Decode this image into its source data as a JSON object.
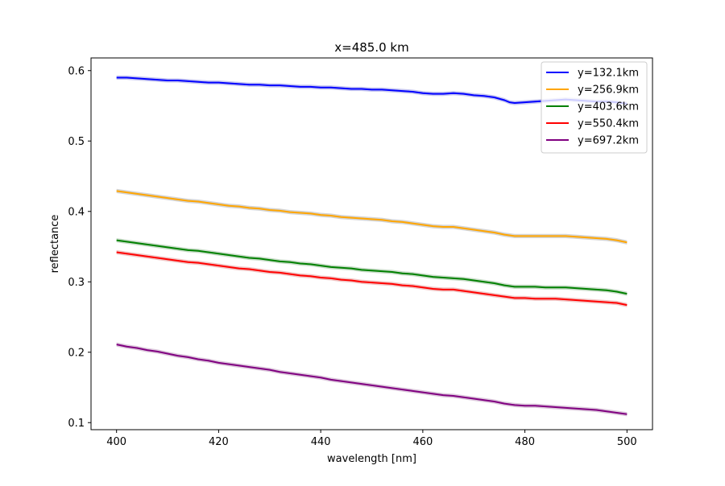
{
  "chart_data": {
    "type": "line",
    "title": "x=485.0 km",
    "xlabel": "wavelength [nm]",
    "ylabel": "reflectance",
    "xlim": [
      395,
      505
    ],
    "ylim": [
      0.09,
      0.618
    ],
    "xticks": [
      400,
      420,
      440,
      460,
      480,
      500
    ],
    "yticks": [
      0.1,
      0.2,
      0.3,
      0.4,
      0.5,
      0.6
    ],
    "grid": false,
    "legend": {
      "placement": "top-right"
    },
    "band": "±0.003",
    "x": [
      400,
      402,
      404,
      406,
      408,
      410,
      412,
      414,
      416,
      418,
      420,
      422,
      424,
      426,
      428,
      430,
      432,
      434,
      436,
      438,
      440,
      442,
      444,
      446,
      448,
      450,
      452,
      454,
      456,
      458,
      460,
      462,
      464,
      466,
      468,
      470,
      472,
      474,
      476,
      477,
      478,
      480,
      482,
      484,
      486,
      488,
      490,
      492,
      494,
      496,
      498,
      500
    ],
    "series": [
      {
        "name": "y=132.1km",
        "color": "#0000ff",
        "band_color": "#c6c6f0",
        "values": [
          0.59,
          0.59,
          0.589,
          0.588,
          0.587,
          0.586,
          0.586,
          0.585,
          0.584,
          0.583,
          0.583,
          0.582,
          0.581,
          0.58,
          0.58,
          0.579,
          0.579,
          0.578,
          0.577,
          0.577,
          0.576,
          0.576,
          0.575,
          0.574,
          0.574,
          0.573,
          0.573,
          0.572,
          0.571,
          0.57,
          0.568,
          0.567,
          0.567,
          0.568,
          0.567,
          0.565,
          0.564,
          0.562,
          0.558,
          0.555,
          0.554,
          0.555,
          0.556,
          0.557,
          0.558,
          0.559,
          0.558,
          0.557,
          0.556,
          0.556,
          0.555,
          0.553
        ]
      },
      {
        "name": "y=256.9km",
        "color": "#ffa500",
        "band_color": "#d4d4d4",
        "values": [
          0.429,
          0.427,
          0.425,
          0.423,
          0.421,
          0.419,
          0.417,
          0.415,
          0.414,
          0.412,
          0.41,
          0.408,
          0.407,
          0.405,
          0.404,
          0.402,
          0.401,
          0.399,
          0.398,
          0.397,
          0.395,
          0.394,
          0.392,
          0.391,
          0.39,
          0.389,
          0.388,
          0.386,
          0.385,
          0.383,
          0.381,
          0.379,
          0.378,
          0.378,
          0.376,
          0.374,
          0.372,
          0.37,
          0.367,
          0.366,
          0.365,
          0.365,
          0.365,
          0.365,
          0.365,
          0.365,
          0.364,
          0.363,
          0.362,
          0.361,
          0.359,
          0.356
        ]
      },
      {
        "name": "y=403.6km",
        "color": "#008000",
        "band_color": "#c8dcc8",
        "values": [
          0.359,
          0.357,
          0.355,
          0.353,
          0.351,
          0.349,
          0.347,
          0.345,
          0.344,
          0.342,
          0.34,
          0.338,
          0.336,
          0.334,
          0.333,
          0.331,
          0.329,
          0.328,
          0.326,
          0.325,
          0.323,
          0.321,
          0.32,
          0.319,
          0.317,
          0.316,
          0.315,
          0.314,
          0.312,
          0.311,
          0.309,
          0.307,
          0.306,
          0.305,
          0.304,
          0.302,
          0.3,
          0.298,
          0.295,
          0.294,
          0.293,
          0.293,
          0.293,
          0.292,
          0.292,
          0.292,
          0.291,
          0.29,
          0.289,
          0.288,
          0.286,
          0.283
        ]
      },
      {
        "name": "y=550.4km",
        "color": "#ff0000",
        "band_color": "#f0c6c6",
        "values": [
          0.342,
          0.34,
          0.338,
          0.336,
          0.334,
          0.332,
          0.33,
          0.328,
          0.327,
          0.325,
          0.323,
          0.321,
          0.319,
          0.318,
          0.316,
          0.314,
          0.313,
          0.311,
          0.309,
          0.308,
          0.306,
          0.305,
          0.303,
          0.302,
          0.3,
          0.299,
          0.298,
          0.297,
          0.295,
          0.294,
          0.292,
          0.29,
          0.289,
          0.289,
          0.287,
          0.285,
          0.283,
          0.281,
          0.279,
          0.278,
          0.277,
          0.277,
          0.276,
          0.276,
          0.276,
          0.275,
          0.274,
          0.273,
          0.272,
          0.271,
          0.27,
          0.267
        ]
      },
      {
        "name": "y=697.2km",
        "color": "#800080",
        "band_color": "#dcc8dc",
        "values": [
          0.211,
          0.208,
          0.206,
          0.203,
          0.201,
          0.198,
          0.195,
          0.193,
          0.19,
          0.188,
          0.185,
          0.183,
          0.181,
          0.179,
          0.177,
          0.175,
          0.172,
          0.17,
          0.168,
          0.166,
          0.164,
          0.161,
          0.159,
          0.157,
          0.155,
          0.153,
          0.151,
          0.149,
          0.147,
          0.145,
          0.143,
          0.141,
          0.139,
          0.138,
          0.136,
          0.134,
          0.132,
          0.13,
          0.127,
          0.126,
          0.125,
          0.124,
          0.124,
          0.123,
          0.122,
          0.121,
          0.12,
          0.119,
          0.118,
          0.116,
          0.114,
          0.112
        ]
      }
    ]
  }
}
